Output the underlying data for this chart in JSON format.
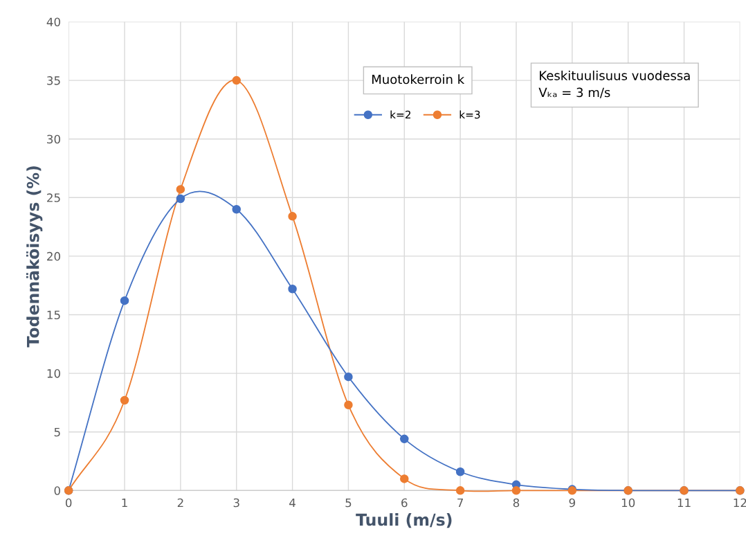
{
  "chart_data": {
    "type": "line",
    "xlabel": "Tuuli (m/s)",
    "ylabel": "Todennäköisyys (%)",
    "x": [
      0,
      1,
      2,
      3,
      4,
      5,
      6,
      7,
      8,
      9,
      10,
      11,
      12
    ],
    "series": [
      {
        "name": "k=2",
        "color": "#4472c4",
        "values": [
          0,
          16.2,
          24.9,
          24.0,
          17.2,
          9.7,
          4.4,
          1.6,
          0.5,
          0.1,
          0,
          0,
          0
        ]
      },
      {
        "name": "k=3",
        "color": "#ed7d31",
        "values": [
          0,
          7.7,
          25.7,
          35.0,
          23.4,
          7.3,
          1.0,
          0,
          0,
          0,
          0,
          0,
          0
        ]
      }
    ],
    "xlim": [
      0,
      12
    ],
    "xticks": [
      0,
      1,
      2,
      3,
      4,
      5,
      6,
      7,
      8,
      9,
      10,
      11,
      12
    ],
    "ylim": [
      0,
      40
    ],
    "yticks": [
      0,
      5,
      10,
      15,
      20,
      25,
      30,
      35,
      40
    ],
    "grid": true,
    "legend": "top",
    "legend_title": "Muotokerroin k",
    "marker": "circle",
    "line_style": "solid",
    "annotations": [
      "Keskituulisuus vuodessa\nVₖₐ = 3 m/s"
    ]
  }
}
